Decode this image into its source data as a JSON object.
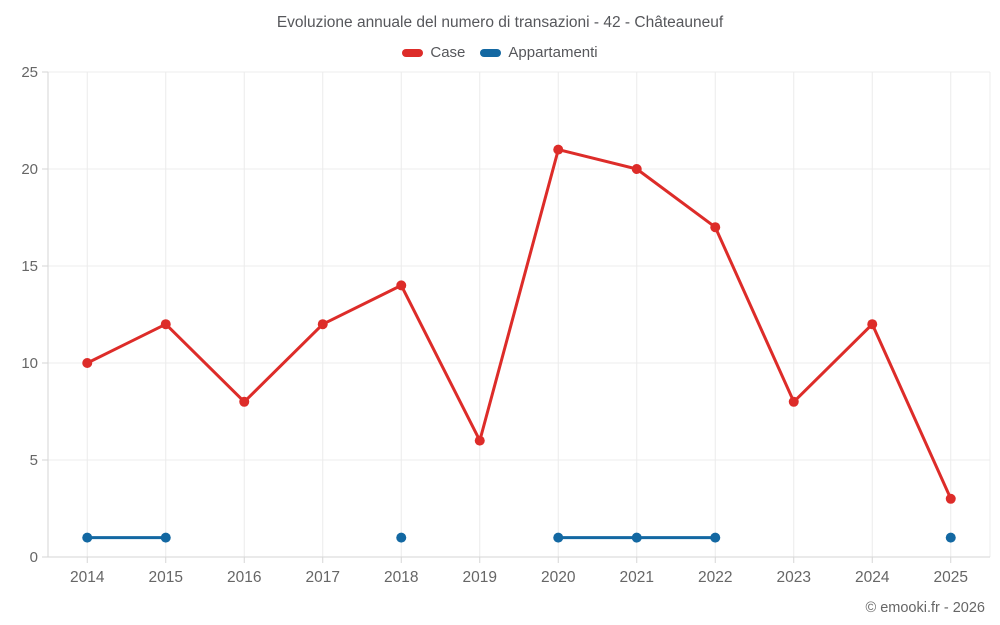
{
  "title": "Evoluzione annuale del numero di transazioni - 42 - Châteauneuf",
  "copyright": "© emooki.fr - 2026",
  "colors": {
    "case_red": "#dd2c29",
    "appartamenti_blue": "#1368a2",
    "grid": "#ececec",
    "axis": "#d6d6d6",
    "tick_text": "#666666",
    "background": "#ffffff"
  },
  "chart_data": {
    "type": "line",
    "title": "Evoluzione annuale del numero di transazioni - 42 - Châteauneuf",
    "categories": [
      "2014",
      "2015",
      "2016",
      "2017",
      "2018",
      "2019",
      "2020",
      "2021",
      "2022",
      "2023",
      "2024",
      "2025"
    ],
    "series": [
      {
        "name": "Case",
        "color": "#dd2c29",
        "values": [
          10,
          12,
          8,
          12,
          14,
          6,
          21,
          20,
          17,
          8,
          12,
          3
        ]
      },
      {
        "name": "Appartamenti",
        "color": "#1368a2",
        "values": [
          1,
          1,
          null,
          null,
          1,
          null,
          1,
          1,
          1,
          null,
          null,
          1
        ]
      }
    ],
    "xlabel": "",
    "ylabel": "",
    "ylim": [
      0,
      25
    ],
    "yticks": [
      0,
      5,
      10,
      15,
      20,
      25
    ],
    "grid": true,
    "legend_position": "top"
  }
}
